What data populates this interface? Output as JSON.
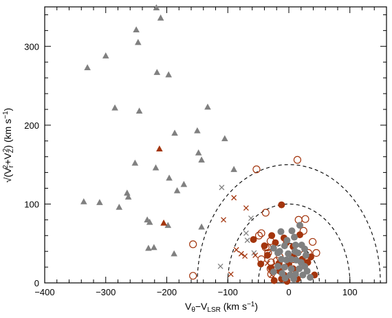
{
  "chart_data": {
    "type": "scatter",
    "title": "",
    "xlabel_parts": {
      "base": "V",
      "sub1": "θ",
      "mid": "−V",
      "sub2": "LSR",
      "units": " (km s",
      "sup": "−1",
      "end": ")"
    },
    "ylabel_parts": {
      "root": "√",
      "open": "(V",
      "sub1": "r",
      "sup1": "2",
      "plus": "+V",
      "sub2": "Z",
      "sup2": "2",
      "close": ")",
      "units": " (km s",
      "sup": "−1",
      "end": ")"
    },
    "xlim": [
      -400,
      160
    ],
    "ylim": [
      0,
      350
    ],
    "x_ticks": [
      -400,
      -300,
      -200,
      -100,
      0,
      100
    ],
    "y_ticks": [
      0,
      100,
      200,
      300
    ],
    "grid": false,
    "legend": "none",
    "colors": {
      "gray": "#808080",
      "red": "#a3350d"
    },
    "reference_circles": {
      "center_x": 0,
      "radii": [
        50,
        100,
        150
      ],
      "style": "dashed"
    },
    "series": [
      {
        "marker": "triangle-filled",
        "color": "gray",
        "points": [
          [
            -217,
            349
          ],
          [
            -210,
            336
          ],
          [
            -250,
            321
          ],
          [
            -247,
            305
          ],
          [
            -300,
            288
          ],
          [
            -330,
            273
          ],
          [
            -216,
            267
          ],
          [
            -197,
            264
          ],
          [
            -285,
            222
          ],
          [
            -245,
            218
          ],
          [
            -133,
            223
          ],
          [
            -187,
            190
          ],
          [
            -150,
            193
          ],
          [
            -105,
            183
          ],
          [
            -148,
            165
          ],
          [
            -252,
            152
          ],
          [
            -218,
            146
          ],
          [
            -143,
            156
          ],
          [
            -196,
            133
          ],
          [
            -90,
            144
          ],
          [
            -183,
            117
          ],
          [
            -172,
            125
          ],
          [
            -265,
            114
          ],
          [
            -263,
            109
          ],
          [
            -278,
            96
          ],
          [
            -336,
            103
          ],
          [
            -310,
            102
          ],
          [
            -232,
            80
          ],
          [
            -228,
            77
          ],
          [
            -143,
            71
          ],
          [
            -198,
            73
          ],
          [
            -230,
            44
          ],
          [
            -221,
            45
          ],
          [
            -188,
            37
          ]
        ]
      },
      {
        "marker": "triangle-filled",
        "color": "red",
        "points": [
          [
            -212,
            170
          ],
          [
            -205,
            76
          ]
        ]
      },
      {
        "marker": "cross",
        "color": "gray",
        "points": [
          [
            -110,
            121
          ],
          [
            -62,
            82
          ],
          [
            -70,
            63
          ],
          [
            -112,
            21
          ],
          [
            -68,
            54
          ],
          [
            -57,
            38
          ]
        ]
      },
      {
        "marker": "cross",
        "color": "red",
        "points": [
          [
            -90,
            108
          ],
          [
            -107,
            80
          ],
          [
            -70,
            95
          ],
          [
            -78,
            37
          ],
          [
            -72,
            34
          ],
          [
            -86,
            42
          ],
          [
            -55,
            35
          ],
          [
            -95,
            11
          ],
          [
            -35,
            25
          ],
          [
            -28,
            10
          ]
        ]
      },
      {
        "marker": "circle-open",
        "color": "red",
        "points": [
          [
            -53,
            144
          ],
          [
            14,
            156
          ],
          [
            -157,
            49
          ],
          [
            -157,
            9
          ],
          [
            -38,
            89
          ],
          [
            -45,
            63
          ],
          [
            -49,
            60
          ],
          [
            -38,
            45
          ],
          [
            -35,
            45
          ],
          [
            -45,
            30
          ],
          [
            -34,
            38
          ],
          [
            -29,
            26
          ],
          [
            -23,
            20
          ],
          [
            -29,
            11
          ],
          [
            16,
            80
          ],
          [
            27,
            81
          ],
          [
            24,
            66
          ],
          [
            39,
            52
          ],
          [
            17,
            42
          ],
          [
            32,
            38
          ],
          [
            -30,
            53
          ],
          [
            -15,
            33
          ],
          [
            8,
            30
          ],
          [
            -30,
            18
          ],
          [
            -20,
            28
          ],
          [
            45,
            38
          ],
          [
            10,
            12
          ]
        ]
      },
      {
        "marker": "circle-filled",
        "color": "red",
        "points": [
          [
            -12,
            99
          ],
          [
            -58,
            55
          ],
          [
            -28,
            60
          ],
          [
            -8,
            57
          ],
          [
            -22,
            51
          ],
          [
            -40,
            47
          ],
          [
            -4,
            51
          ],
          [
            7,
            46
          ],
          [
            18,
            61
          ],
          [
            -35,
            35
          ],
          [
            -46,
            24
          ],
          [
            -29,
            19
          ],
          [
            -16,
            25
          ],
          [
            0,
            24
          ],
          [
            8,
            34
          ],
          [
            -15,
            15
          ],
          [
            -8,
            10
          ],
          [
            -12,
            5
          ],
          [
            -3,
            2
          ],
          [
            14,
            5
          ],
          [
            31,
            26
          ],
          [
            22,
            30
          ],
          [
            7,
            18
          ],
          [
            42,
            10
          ],
          [
            -24,
            3
          ],
          [
            36,
            33
          ]
        ]
      },
      {
        "marker": "circle-filled",
        "color": "gray",
        "points": [
          [
            -13,
            65
          ],
          [
            5,
            66
          ],
          [
            18,
            73
          ],
          [
            -3,
            54
          ],
          [
            9,
            58
          ],
          [
            -7,
            47
          ],
          [
            11,
            48
          ],
          [
            26,
            43
          ],
          [
            21,
            48
          ],
          [
            -25,
            44
          ],
          [
            -18,
            38
          ],
          [
            -1,
            37
          ],
          [
            15,
            38
          ],
          [
            28,
            35
          ],
          [
            -12,
            30
          ],
          [
            -4,
            29
          ],
          [
            4,
            30
          ],
          [
            12,
            29
          ],
          [
            -18,
            21
          ],
          [
            -7,
            20
          ],
          [
            4,
            18
          ],
          [
            17,
            18
          ],
          [
            26,
            21
          ],
          [
            -11,
            12
          ],
          [
            2,
            10
          ],
          [
            11,
            11
          ],
          [
            23,
            10
          ],
          [
            -6,
            6
          ],
          [
            8,
            5
          ],
          [
            35,
            7
          ],
          [
            -15,
            40
          ],
          [
            20,
            26
          ],
          [
            30,
            15
          ],
          [
            -25,
            14
          ],
          [
            10,
            40
          ]
        ]
      }
    ]
  }
}
